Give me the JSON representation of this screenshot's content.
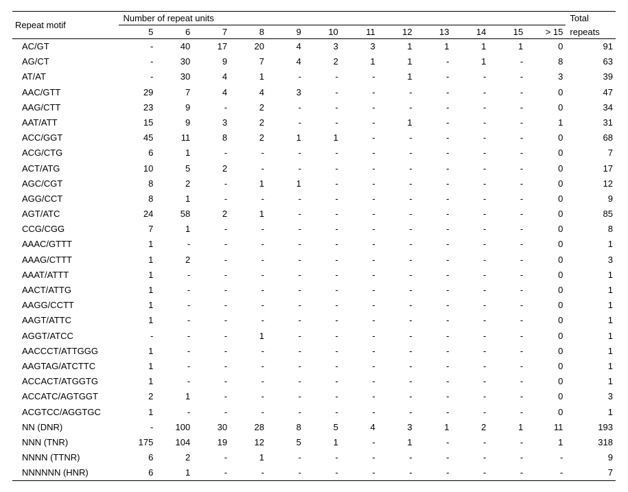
{
  "table": {
    "type": "table",
    "background_color": "#ffffff",
    "text_color": "#000000",
    "border_color": "#000000",
    "font_family": "Arial, Helvetica, sans-serif",
    "font_size_pt": 10,
    "header": {
      "motif_label": "Repeat motif",
      "group_label": "Number of repeat units",
      "total_label_line1": "Total",
      "total_label_line2": "repeats",
      "unit_columns": [
        "5",
        "6",
        "7",
        "8",
        "9",
        "10",
        "11",
        "12",
        "13",
        "14",
        "15",
        "> 15"
      ]
    },
    "rows": [
      {
        "motif": "AC/GT",
        "cells": [
          "-",
          "40",
          "17",
          "20",
          "4",
          "3",
          "3",
          "1",
          "1",
          "1",
          "1",
          "0"
        ],
        "total": "91"
      },
      {
        "motif": "AG/CT",
        "cells": [
          "-",
          "30",
          "9",
          "7",
          "4",
          "2",
          "1",
          "1",
          "-",
          "1",
          "-",
          "8"
        ],
        "total": "63"
      },
      {
        "motif": "AT/AT",
        "cells": [
          "-",
          "30",
          "4",
          "1",
          "-",
          "-",
          "-",
          "1",
          "-",
          "-",
          "-",
          "3"
        ],
        "total": "39"
      },
      {
        "motif": "AAC/GTT",
        "cells": [
          "29",
          "7",
          "4",
          "4",
          "3",
          "-",
          "-",
          "-",
          "-",
          "-",
          "-",
          "0"
        ],
        "total": "47"
      },
      {
        "motif": "AAG/CTT",
        "cells": [
          "23",
          "9",
          "-",
          "2",
          "-",
          "-",
          "-",
          "-",
          "-",
          "-",
          "-",
          "0"
        ],
        "total": "34"
      },
      {
        "motif": "AAT/ATT",
        "cells": [
          "15",
          "9",
          "3",
          "2",
          "-",
          "-",
          "-",
          "1",
          "-",
          "-",
          "-",
          "1"
        ],
        "total": "31"
      },
      {
        "motif": "ACC/GGT",
        "cells": [
          "45",
          "11",
          "8",
          "2",
          "1",
          "1",
          "-",
          "-",
          "-",
          "-",
          "-",
          "0"
        ],
        "total": "68"
      },
      {
        "motif": "ACG/CTG",
        "cells": [
          "6",
          "1",
          "-",
          "-",
          "-",
          "-",
          "-",
          "-",
          "-",
          "-",
          "-",
          "0"
        ],
        "total": "7"
      },
      {
        "motif": "ACT/ATG",
        "cells": [
          "10",
          "5",
          "2",
          "-",
          "-",
          "-",
          "-",
          "-",
          "-",
          "-",
          "-",
          "0"
        ],
        "total": "17"
      },
      {
        "motif": "AGC/CGT",
        "cells": [
          "8",
          "2",
          "-",
          "1",
          "1",
          "-",
          "-",
          "-",
          "-",
          "-",
          "-",
          "0"
        ],
        "total": "12"
      },
      {
        "motif": "AGG/CCT",
        "cells": [
          "8",
          "1",
          "-",
          "-",
          "-",
          "-",
          "-",
          "-",
          "-",
          "-",
          "-",
          "0"
        ],
        "total": "9"
      },
      {
        "motif": "AGT/ATC",
        "cells": [
          "24",
          "58",
          "2",
          "1",
          "-",
          "-",
          "-",
          "-",
          "-",
          "-",
          "-",
          "0"
        ],
        "total": "85"
      },
      {
        "motif": "CCG/CGG",
        "cells": [
          "7",
          "1",
          "-",
          "-",
          "-",
          "-",
          "-",
          "-",
          "-",
          "-",
          "-",
          "0"
        ],
        "total": "8"
      },
      {
        "motif": "AAAC/GTTT",
        "cells": [
          "1",
          "-",
          "-",
          "-",
          "-",
          "-",
          "-",
          "-",
          "-",
          "-",
          "-",
          "0"
        ],
        "total": "1"
      },
      {
        "motif": "AAAG/CTTT",
        "cells": [
          "1",
          "2",
          "-",
          "-",
          "-",
          "-",
          "-",
          "-",
          "-",
          "-",
          "-",
          "0"
        ],
        "total": "3"
      },
      {
        "motif": "AAAT/ATTT",
        "cells": [
          "1",
          "-",
          "-",
          "-",
          "-",
          "-",
          "-",
          "-",
          "-",
          "-",
          "-",
          "0"
        ],
        "total": "1"
      },
      {
        "motif": "AACT/ATTG",
        "cells": [
          "1",
          "-",
          "-",
          "-",
          "-",
          "-",
          "-",
          "-",
          "-",
          "-",
          "-",
          "0"
        ],
        "total": "1"
      },
      {
        "motif": "AAGG/CCTT",
        "cells": [
          "1",
          "-",
          "-",
          "-",
          "-",
          "-",
          "-",
          "-",
          "-",
          "-",
          "-",
          "0"
        ],
        "total": "1"
      },
      {
        "motif": "AAGT/ATTC",
        "cells": [
          "1",
          "-",
          "-",
          "-",
          "-",
          "-",
          "-",
          "-",
          "-",
          "-",
          "-",
          "0"
        ],
        "total": "1"
      },
      {
        "motif": "AGGT/ATCC",
        "cells": [
          "-",
          "-",
          "-",
          "1",
          "-",
          "-",
          "-",
          "-",
          "-",
          "-",
          "-",
          "0"
        ],
        "total": "1"
      },
      {
        "motif": "AACCCT/ATTGGG",
        "cells": [
          "1",
          "-",
          "-",
          "-",
          "-",
          "-",
          "-",
          "-",
          "-",
          "-",
          "-",
          "0"
        ],
        "total": "1"
      },
      {
        "motif": "AAGTAG/ATCTTC",
        "cells": [
          "1",
          "-",
          "-",
          "-",
          "-",
          "-",
          "-",
          "-",
          "-",
          "-",
          "-",
          "0"
        ],
        "total": "1"
      },
      {
        "motif": "ACCACT/ATGGTG",
        "cells": [
          "1",
          "-",
          "-",
          "-",
          "-",
          "-",
          "-",
          "-",
          "-",
          "-",
          "-",
          "0"
        ],
        "total": "1"
      },
      {
        "motif": "ACCATC/AGTGGT",
        "cells": [
          "2",
          "1",
          "-",
          "-",
          "-",
          "-",
          "-",
          "-",
          "-",
          "-",
          "-",
          "0"
        ],
        "total": "3"
      },
      {
        "motif": "ACGTCC/AGGTGC",
        "cells": [
          "1",
          "-",
          "-",
          "-",
          "-",
          "-",
          "-",
          "-",
          "-",
          "-",
          "-",
          "0"
        ],
        "total": "1"
      },
      {
        "motif": "NN (DNR)",
        "cells": [
          "-",
          "100",
          "30",
          "28",
          "8",
          "5",
          "4",
          "3",
          "1",
          "2",
          "1",
          "11"
        ],
        "total": "193"
      },
      {
        "motif": "NNN (TNR)",
        "cells": [
          "175",
          "104",
          "19",
          "12",
          "5",
          "1",
          "-",
          "1",
          "-",
          "-",
          "-",
          "1"
        ],
        "total": "318"
      },
      {
        "motif": "NNNN (TTNR)",
        "cells": [
          "6",
          "2",
          "-",
          "1",
          "-",
          "-",
          "-",
          "-",
          "-",
          "-",
          "-",
          "-"
        ],
        "total": "9"
      },
      {
        "motif": "NNNNNN (HNR)",
        "cells": [
          "6",
          "1",
          "-",
          "-",
          "-",
          "-",
          "-",
          "-",
          "-",
          "-",
          "-",
          "-"
        ],
        "total": "7"
      }
    ]
  }
}
